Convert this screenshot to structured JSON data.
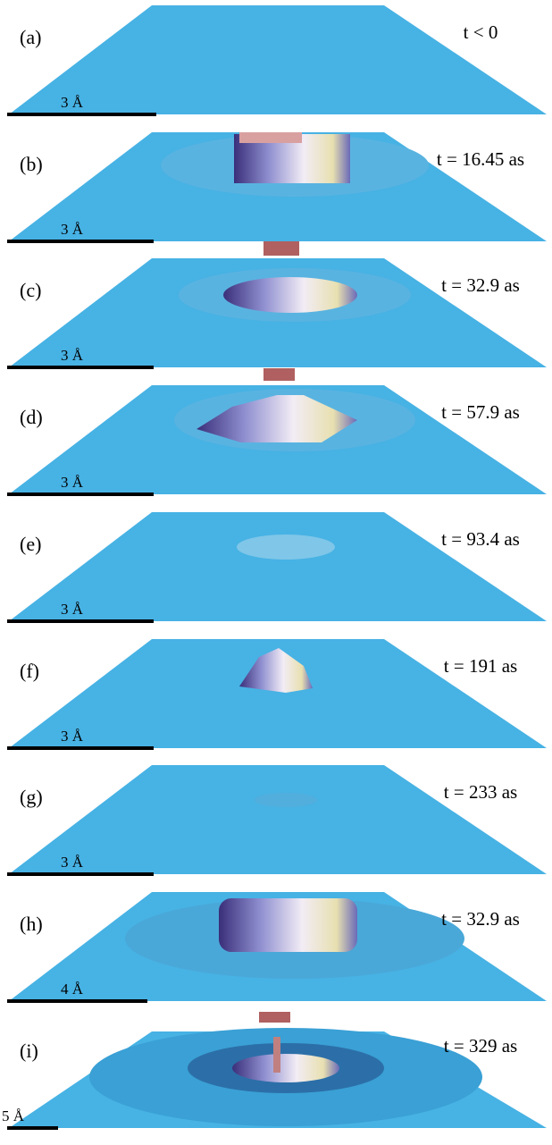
{
  "panels": [
    {
      "label": "(a)",
      "time": "t < 0",
      "scale": "3 Å"
    },
    {
      "label": "(b)",
      "time": "t = 16.45 as",
      "scale": "3 Å"
    },
    {
      "label": "(c)",
      "time": "t = 32.9 as",
      "scale": "3 Å"
    },
    {
      "label": "(d)",
      "time": "t = 57.9 as",
      "scale": "3 Å"
    },
    {
      "label": "(e)",
      "time": "t = 93.4 as",
      "scale": "3 Å"
    },
    {
      "label": "(f)",
      "time": "t = 191 as",
      "scale": "3 Å"
    },
    {
      "label": "(g)",
      "time": "t = 233 as",
      "scale": "3 Å"
    },
    {
      "label": "(h)",
      "time": "t = 32.9 as",
      "scale": "4 Å"
    },
    {
      "label": "(i)",
      "time": "t = 329 as",
      "scale": "5 Å"
    }
  ]
}
